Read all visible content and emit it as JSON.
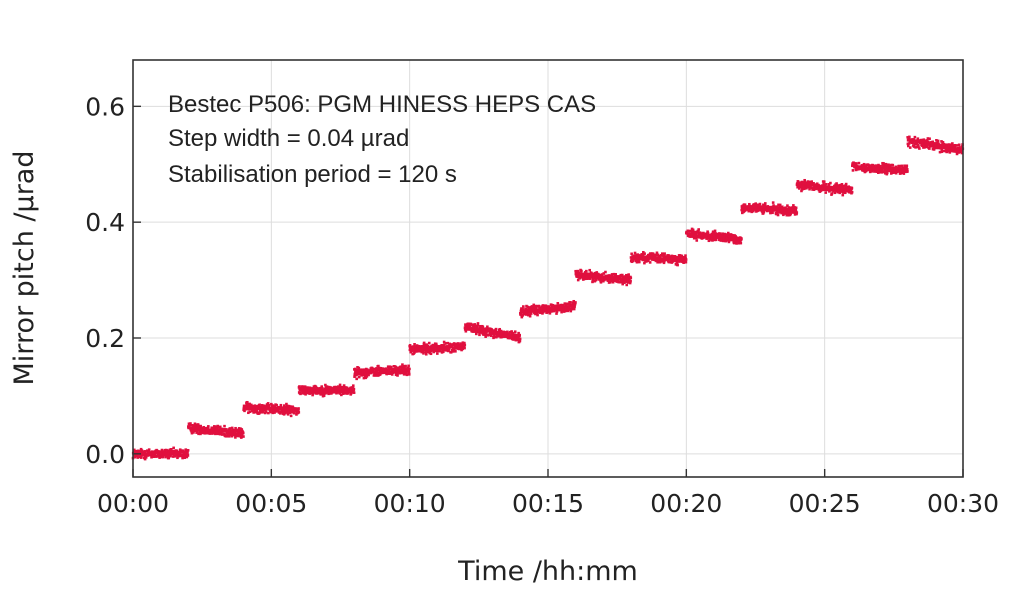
{
  "chart_data": {
    "type": "scatter",
    "title": "",
    "xlabel": "Time /hh:mm",
    "ylabel": "Mirror pitch /µrad",
    "xlim_minutes": [
      0,
      30
    ],
    "ylim": [
      -0.04,
      0.68
    ],
    "x_ticks": [
      "00:00",
      "00:05",
      "00:10",
      "00:15",
      "00:20",
      "00:25",
      "00:30"
    ],
    "y_ticks": [
      "0.0",
      "0.2",
      "0.4",
      "0.6"
    ],
    "grid": true,
    "annotations": [
      "Bestec P506: PGM HINESS HEPS CAS",
      "Step width = 0.04 µrad",
      "Stabilisation period = 120 s"
    ],
    "series": [
      {
        "color": "#e0103f",
        "steps": [
          {
            "start": "00:00",
            "end": "00:02",
            "y_start": 0.0,
            "y_end": 0.0
          },
          {
            "start": "00:02",
            "end": "00:04",
            "y_start": 0.045,
            "y_end": 0.035
          },
          {
            "start": "00:04",
            "end": "00:06",
            "y_start": 0.08,
            "y_end": 0.075
          },
          {
            "start": "00:06",
            "end": "00:08",
            "y_start": 0.11,
            "y_end": 0.11
          },
          {
            "start": "00:08",
            "end": "00:10",
            "y_start": 0.14,
            "y_end": 0.145
          },
          {
            "start": "00:10",
            "end": "00:12",
            "y_start": 0.18,
            "y_end": 0.185
          },
          {
            "start": "00:12",
            "end": "00:14",
            "y_start": 0.22,
            "y_end": 0.2
          },
          {
            "start": "00:14",
            "end": "00:16",
            "y_start": 0.245,
            "y_end": 0.255
          },
          {
            "start": "00:16",
            "end": "00:18",
            "y_start": 0.31,
            "y_end": 0.3
          },
          {
            "start": "00:18",
            "end": "00:20",
            "y_start": 0.34,
            "y_end": 0.335
          },
          {
            "start": "00:20",
            "end": "00:22",
            "y_start": 0.38,
            "y_end": 0.37
          },
          {
            "start": "00:22",
            "end": "00:24",
            "y_start": 0.425,
            "y_end": 0.42
          },
          {
            "start": "00:24",
            "end": "00:26",
            "y_start": 0.465,
            "y_end": 0.455
          },
          {
            "start": "00:26",
            "end": "00:28",
            "y_start": 0.495,
            "y_end": 0.49
          },
          {
            "start": "00:28",
            "end": "00:30",
            "y_start": 0.54,
            "y_end": 0.525
          }
        ],
        "noise_amplitude": 0.012
      }
    ]
  }
}
